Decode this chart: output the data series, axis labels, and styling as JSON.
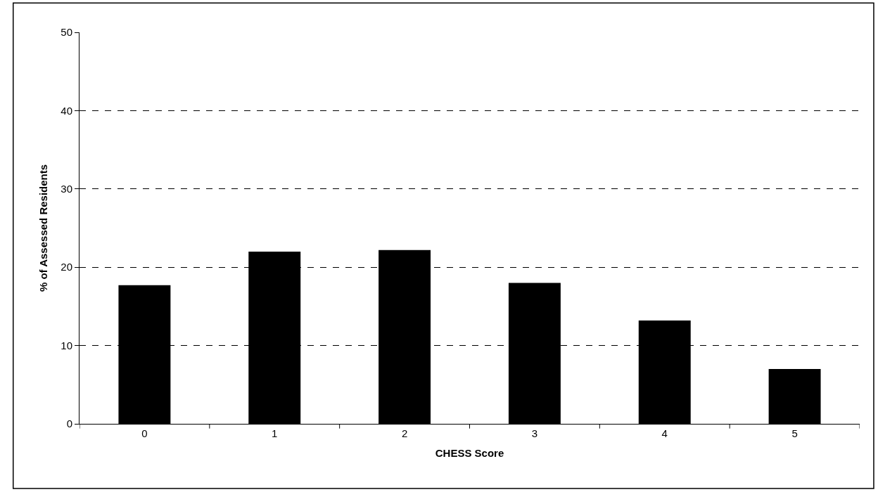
{
  "chart_data": {
    "type": "bar",
    "xlabel": "CHESS Score",
    "ylabel": "% of Assessed Residents",
    "categories": [
      "0",
      "1",
      "2",
      "3",
      "4",
      "5"
    ],
    "values": [
      17.7,
      22.0,
      22.2,
      18.0,
      13.2,
      7.0
    ],
    "color": "#000000",
    "ylim": [
      0,
      50
    ],
    "yticks": [
      0,
      10,
      20,
      30,
      40,
      50
    ],
    "grid": "y"
  }
}
